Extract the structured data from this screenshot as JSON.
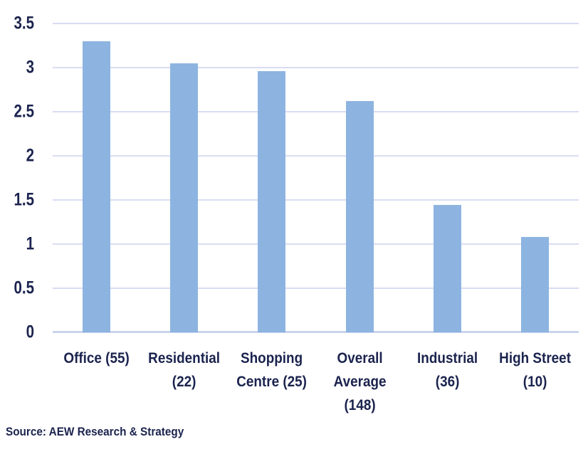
{
  "chart_data": {
    "type": "bar",
    "categories": [
      "Office (55)",
      "Residential (22)",
      "Shopping Centre (25)",
      "Overall Average (148)",
      "Industrial (36)",
      "High Street (10)"
    ],
    "category_lines": [
      [
        "Office (55)"
      ],
      [
        "Residential",
        "(22)"
      ],
      [
        "Shopping",
        "Centre (25)"
      ],
      [
        "Overall",
        "Average",
        "(148)"
      ],
      [
        "Industrial",
        "(36)"
      ],
      [
        "High Street",
        "(10)"
      ]
    ],
    "values": [
      3.3,
      3.05,
      2.96,
      2.62,
      1.44,
      1.08
    ],
    "title": "",
    "xlabel": "",
    "ylabel": "",
    "ylim": [
      0,
      3.5
    ],
    "yticks": [
      0,
      0.5,
      1,
      1.5,
      2,
      2.5,
      3,
      3.5
    ],
    "grid": true,
    "legend": "none",
    "bar_color": "#8DB4E0",
    "gridline_color": "#D8DDF2",
    "axisline_color": "#CAD3ED",
    "text_color": "#1B234E"
  },
  "source": {
    "text": "Source: AEW Research & Strategy"
  }
}
